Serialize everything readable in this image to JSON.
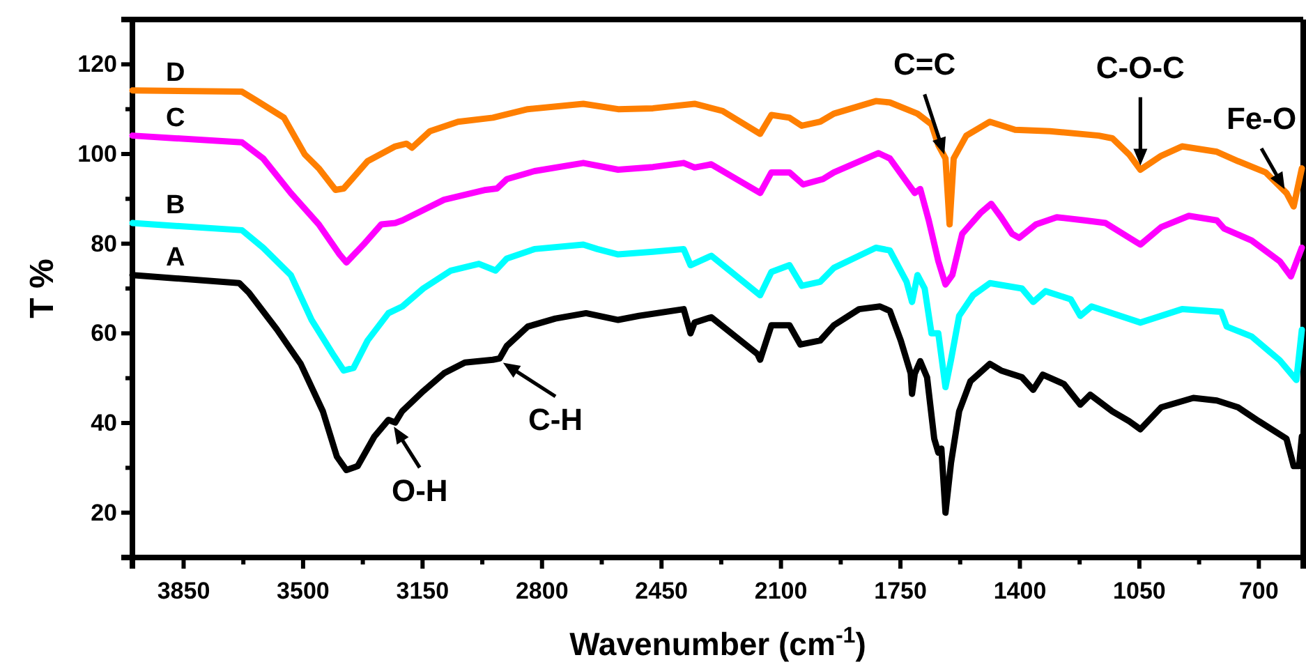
{
  "chart_data": {
    "type": "line",
    "xlabel": "Wavenumber (cm$^{-1}$)",
    "ylabel": "T %",
    "xlim": [
      4000,
      570
    ],
    "ylim": [
      10,
      130
    ],
    "xticks": [
      3850,
      {
        "value": 3675,
        "label": null
      },
      3500,
      {
        "value": 3325,
        "label": null
      },
      3150,
      {
        "value": 2975,
        "label": null
      },
      2800,
      {
        "value": 2625,
        "label": null
      },
      2450,
      {
        "value": 2275,
        "label": null
      },
      2100,
      {
        "value": 1925,
        "label": null
      },
      1750,
      {
        "value": 1575,
        "label": null
      },
      1400,
      {
        "value": 1225,
        "label": null
      },
      1050,
      {
        "value": 875,
        "label": null
      },
      700
    ],
    "yticks": [
      {
        "value": 10,
        "label": null
      },
      20,
      {
        "value": 30,
        "label": null
      },
      40,
      {
        "value": 50,
        "label": null
      },
      60,
      {
        "value": 70,
        "label": null
      },
      80,
      {
        "value": 90,
        "label": null
      },
      100,
      {
        "value": 110,
        "label": null
      },
      120,
      {
        "value": 130,
        "label": null
      }
    ],
    "grid": false,
    "marker": "none",
    "line_style": "solid",
    "series": [
      {
        "name": "A",
        "color": "#000000",
        "x": [
          4000,
          3687,
          3658,
          3577,
          3507,
          3442,
          3401,
          3373,
          3340,
          3291,
          3250,
          3230,
          3210,
          3148,
          3087,
          3026,
          2944,
          2924,
          2903,
          2842,
          2761,
          2671,
          2577,
          2516,
          2385,
          2365,
          2353,
          2304,
          2169,
          2161,
          2128,
          2075,
          2043,
          1985,
          1945,
          1871,
          1810,
          1781,
          1749,
          1720,
          1716,
          1708,
          1692,
          1672,
          1651,
          1639,
          1630,
          1618,
          1602,
          1578,
          1545,
          1488,
          1455,
          1394,
          1361,
          1333,
          1271,
          1223,
          1194,
          1129,
          1080,
          1047,
          986,
          892,
          823,
          761,
          700,
          619,
          598,
          582,
          574
        ],
        "values": [
          73,
          71.2,
          69,
          60.9,
          53.2,
          42.6,
          32.5,
          29.5,
          30.4,
          37,
          40.7,
          40.1,
          42.6,
          47.1,
          51.1,
          53.5,
          54.1,
          54.4,
          57.2,
          61.5,
          63.3,
          64.5,
          63,
          63.9,
          65.4,
          60,
          62.4,
          63.6,
          55.4,
          54.1,
          61.8,
          61.8,
          57.5,
          58.4,
          61.8,
          65.4,
          66,
          65,
          58.4,
          51.1,
          46.5,
          51,
          53.8,
          50.2,
          36.5,
          33.4,
          34.3,
          20,
          31,
          42.6,
          49.3,
          53.2,
          51.7,
          50.2,
          47.4,
          50.8,
          48.7,
          44.1,
          46.3,
          42.6,
          40.4,
          38.6,
          43.5,
          45.6,
          45,
          43.5,
          40.4,
          36.5,
          30.4,
          30.4,
          37
        ]
      },
      {
        "name": "B",
        "color": "#00ffff",
        "x": [
          4000,
          3679,
          3617,
          3536,
          3475,
          3413,
          3381,
          3352,
          3311,
          3250,
          3209,
          3148,
          3067,
          2985,
          2936,
          2903,
          2822,
          2679,
          2638,
          2577,
          2475,
          2385,
          2365,
          2304,
          2161,
          2128,
          2075,
          2039,
          1985,
          1945,
          1822,
          1781,
          1732,
          1716,
          1700,
          1679,
          1659,
          1639,
          1618,
          1602,
          1578,
          1537,
          1488,
          1394,
          1361,
          1325,
          1251,
          1223,
          1190,
          1047,
          925,
          810,
          794,
          721,
          639,
          590,
          574
        ],
        "values": [
          84.6,
          83,
          79.1,
          73,
          63,
          55.4,
          51.7,
          52.3,
          58.4,
          64.5,
          66,
          70,
          74,
          75.5,
          74,
          76.7,
          78.8,
          79.8,
          78.8,
          77.6,
          78.2,
          78.8,
          75.2,
          77.3,
          68.5,
          73.7,
          75.2,
          70.6,
          71.5,
          74.6,
          79.1,
          78.5,
          71.5,
          67,
          73,
          70,
          60,
          60,
          48,
          54,
          63.9,
          68.5,
          71.2,
          70,
          67,
          69.4,
          67.6,
          63.9,
          66,
          62.4,
          65.4,
          64.8,
          61.5,
          59.3,
          54,
          49.6,
          60.8
        ]
      },
      {
        "name": "C",
        "color": "#ff00ff",
        "x": [
          4000,
          3679,
          3617,
          3536,
          3454,
          3393,
          3373,
          3323,
          3271,
          3230,
          3209,
          3087,
          2965,
          2932,
          2903,
          2822,
          2679,
          2577,
          2475,
          2385,
          2353,
          2304,
          2161,
          2128,
          2075,
          2035,
          1977,
          1945,
          1814,
          1781,
          1708,
          1692,
          1667,
          1639,
          1618,
          1598,
          1569,
          1516,
          1484,
          1455,
          1423,
          1402,
          1353,
          1292,
          1210,
          1149,
          1047,
          986,
          905,
          823,
          802,
          721,
          639,
          606,
          574
        ],
        "values": [
          104.1,
          102.6,
          99,
          91.3,
          84.3,
          77.6,
          75.8,
          79.8,
          84.3,
          84.6,
          85.2,
          89.8,
          92,
          92.3,
          94.4,
          96.2,
          98,
          96.5,
          97.1,
          98,
          97,
          97.7,
          91.3,
          95.9,
          95.9,
          93.2,
          94.4,
          95.9,
          100.2,
          99,
          91.3,
          92.2,
          85.2,
          76.1,
          70.9,
          73,
          82.2,
          86.8,
          88.9,
          85.9,
          82.2,
          81.3,
          84.3,
          85.9,
          85.2,
          84.6,
          79.8,
          83.7,
          86.2,
          85.2,
          83.4,
          80.7,
          76.1,
          72.7,
          79.1
        ]
      },
      {
        "name": "D",
        "color": "#ff7f00",
        "x": [
          4000,
          3679,
          3638,
          3556,
          3495,
          3454,
          3405,
          3381,
          3311,
          3230,
          3197,
          3181,
          3128,
          3046,
          2944,
          2842,
          2679,
          2577,
          2475,
          2353,
          2271,
          2161,
          2128,
          2075,
          2039,
          1985,
          1945,
          1822,
          1781,
          1700,
          1659,
          1639,
          1618,
          1606,
          1594,
          1557,
          1488,
          1414,
          1312,
          1169,
          1129,
          1080,
          1047,
          986,
          925,
          823,
          761,
          680,
          619,
          598,
          574
        ],
        "values": [
          114.2,
          113.9,
          112,
          108.1,
          99.9,
          96.8,
          92,
          92.3,
          98.4,
          101.7,
          102.3,
          101.4,
          105.1,
          107.2,
          108.1,
          110,
          111.2,
          110,
          110.2,
          111.2,
          109.6,
          104.5,
          108.7,
          108.1,
          106.3,
          107.2,
          109,
          111.8,
          111.5,
          109,
          106.6,
          102,
          99,
          84.3,
          99,
          104.1,
          107.2,
          105.4,
          105.1,
          104.1,
          103.5,
          99.9,
          96.5,
          99.6,
          101.7,
          100.5,
          98.4,
          95.9,
          91.3,
          88.3,
          96.8
        ]
      }
    ],
    "annotations": [
      {
        "text": "O-H",
        "x": 3240,
        "y": 40
      },
      {
        "text": "C-H",
        "x": 2924,
        "y": 54
      },
      {
        "text": "C=C",
        "x": 1618,
        "y": 99
      },
      {
        "text": "C-O-C",
        "x": 1047,
        "y": 96.5
      },
      {
        "text": "Fe-O",
        "x": 619,
        "y": 91.3
      }
    ]
  }
}
